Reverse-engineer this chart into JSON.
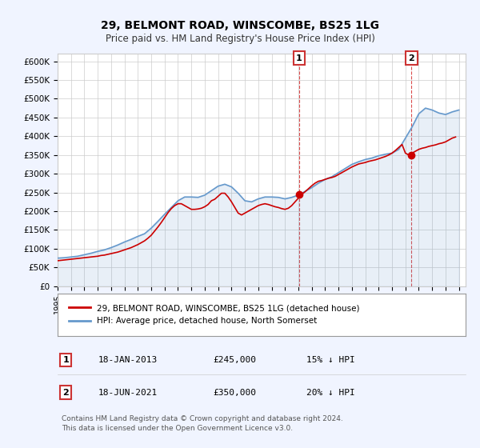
{
  "title": "29, BELMONT ROAD, WINSCOMBE, BS25 1LG",
  "subtitle": "Price paid vs. HM Land Registry's House Price Index (HPI)",
  "ylim": [
    0,
    620000
  ],
  "yticks": [
    0,
    50000,
    100000,
    150000,
    200000,
    250000,
    300000,
    350000,
    400000,
    450000,
    500000,
    550000,
    600000
  ],
  "ytick_labels": [
    "£0",
    "£50K",
    "£100K",
    "£150K",
    "£200K",
    "£250K",
    "£300K",
    "£350K",
    "£400K",
    "£450K",
    "£500K",
    "£550K",
    "£600K"
  ],
  "xlim_start": 1995.0,
  "xlim_end": 2025.5,
  "background_color": "#f0f4ff",
  "plot_bg_color": "#ffffff",
  "red_color": "#cc0000",
  "blue_color": "#6699cc",
  "marker1_x": 2013.05,
  "marker1_y": 245000,
  "marker1_label": "1",
  "marker2_x": 2021.46,
  "marker2_y": 350000,
  "marker2_label": "2",
  "legend_line1": "29, BELMONT ROAD, WINSCOMBE, BS25 1LG (detached house)",
  "legend_line2": "HPI: Average price, detached house, North Somerset",
  "table_row1": [
    "1",
    "18-JAN-2013",
    "£245,000",
    "15% ↓ HPI"
  ],
  "table_row2": [
    "2",
    "18-JUN-2021",
    "£350,000",
    "20% ↓ HPI"
  ],
  "footer": "Contains HM Land Registry data © Crown copyright and database right 2024.\nThis data is licensed under the Open Government Licence v3.0.",
  "hpi_x": [
    1995,
    1995.5,
    1996,
    1996.5,
    1997,
    1997.5,
    1998,
    1998.5,
    1999,
    1999.5,
    2000,
    2000.5,
    2001,
    2001.5,
    2002,
    2002.5,
    2003,
    2003.5,
    2004,
    2004.5,
    2005,
    2005.5,
    2006,
    2006.5,
    2007,
    2007.5,
    2008,
    2008.5,
    2009,
    2009.5,
    2010,
    2010.5,
    2011,
    2011.5,
    2012,
    2012.5,
    2013,
    2013.5,
    2014,
    2014.5,
    2015,
    2015.5,
    2016,
    2016.5,
    2017,
    2017.5,
    2018,
    2018.5,
    2019,
    2019.5,
    2020,
    2020.5,
    2021,
    2021.5,
    2022,
    2022.5,
    2023,
    2023.5,
    2024,
    2024.5,
    2025
  ],
  "hpi_y": [
    75000,
    76000,
    78000,
    80000,
    84000,
    88000,
    93000,
    97000,
    103000,
    110000,
    118000,
    125000,
    133000,
    140000,
    155000,
    173000,
    192000,
    210000,
    228000,
    238000,
    238000,
    237000,
    243000,
    255000,
    267000,
    272000,
    265000,
    248000,
    228000,
    225000,
    233000,
    238000,
    238000,
    237000,
    233000,
    237000,
    243000,
    253000,
    263000,
    275000,
    285000,
    292000,
    303000,
    314000,
    325000,
    332000,
    338000,
    342000,
    348000,
    352000,
    355000,
    365000,
    395000,
    425000,
    460000,
    475000,
    470000,
    462000,
    458000,
    465000,
    470000
  ],
  "price_x": [
    1995,
    1995.25,
    1995.5,
    1995.75,
    1996,
    1996.25,
    1996.5,
    1996.75,
    1997,
    1997.25,
    1997.5,
    1997.75,
    1998,
    1998.25,
    1998.5,
    1998.75,
    1999,
    1999.25,
    1999.5,
    1999.75,
    2000,
    2000.25,
    2000.5,
    2000.75,
    2001,
    2001.25,
    2001.5,
    2001.75,
    2002,
    2002.25,
    2002.5,
    2002.75,
    2003,
    2003.25,
    2003.5,
    2003.75,
    2004,
    2004.25,
    2004.5,
    2004.75,
    2005,
    2005.25,
    2005.5,
    2005.75,
    2006,
    2006.25,
    2006.5,
    2006.75,
    2007,
    2007.25,
    2007.5,
    2007.75,
    2008,
    2008.25,
    2008.5,
    2008.75,
    2009,
    2009.25,
    2009.5,
    2009.75,
    2010,
    2010.25,
    2010.5,
    2010.75,
    2011,
    2011.25,
    2011.5,
    2011.75,
    2012,
    2012.25,
    2012.5,
    2012.75,
    2013,
    2013.25,
    2013.5,
    2013.75,
    2014,
    2014.25,
    2014.5,
    2014.75,
    2015,
    2015.25,
    2015.5,
    2015.75,
    2016,
    2016.25,
    2016.5,
    2016.75,
    2017,
    2017.25,
    2017.5,
    2017.75,
    2018,
    2018.25,
    2018.5,
    2018.75,
    2019,
    2019.25,
    2019.5,
    2019.75,
    2020,
    2020.25,
    2020.5,
    2020.75,
    2021,
    2021.25,
    2021.5,
    2021.75,
    2022,
    2022.25,
    2022.5,
    2022.75,
    2023,
    2023.25,
    2023.5,
    2023.75,
    2024,
    2024.25,
    2024.5,
    2024.75
  ],
  "price_y": [
    68000,
    69000,
    70000,
    71000,
    72000,
    73000,
    74000,
    75000,
    76000,
    77000,
    78000,
    79000,
    80000,
    82000,
    83000,
    85000,
    87000,
    89000,
    91000,
    94000,
    97000,
    100000,
    103000,
    107000,
    111000,
    116000,
    121000,
    128000,
    136000,
    147000,
    158000,
    170000,
    183000,
    196000,
    207000,
    215000,
    220000,
    220000,
    215000,
    210000,
    205000,
    205000,
    206000,
    208000,
    212000,
    218000,
    228000,
    232000,
    240000,
    248000,
    248000,
    238000,
    225000,
    210000,
    195000,
    190000,
    195000,
    200000,
    205000,
    210000,
    215000,
    218000,
    220000,
    218000,
    215000,
    212000,
    210000,
    207000,
    205000,
    208000,
    215000,
    225000,
    235000,
    245000,
    252000,
    260000,
    268000,
    275000,
    280000,
    282000,
    285000,
    288000,
    290000,
    293000,
    298000,
    303000,
    308000,
    313000,
    318000,
    322000,
    326000,
    328000,
    330000,
    333000,
    335000,
    337000,
    340000,
    343000,
    346000,
    350000,
    355000,
    362000,
    370000,
    378000,
    355000,
    350000,
    355000,
    360000,
    365000,
    368000,
    370000,
    373000,
    375000,
    377000,
    380000,
    382000,
    385000,
    390000,
    395000,
    398000
  ]
}
